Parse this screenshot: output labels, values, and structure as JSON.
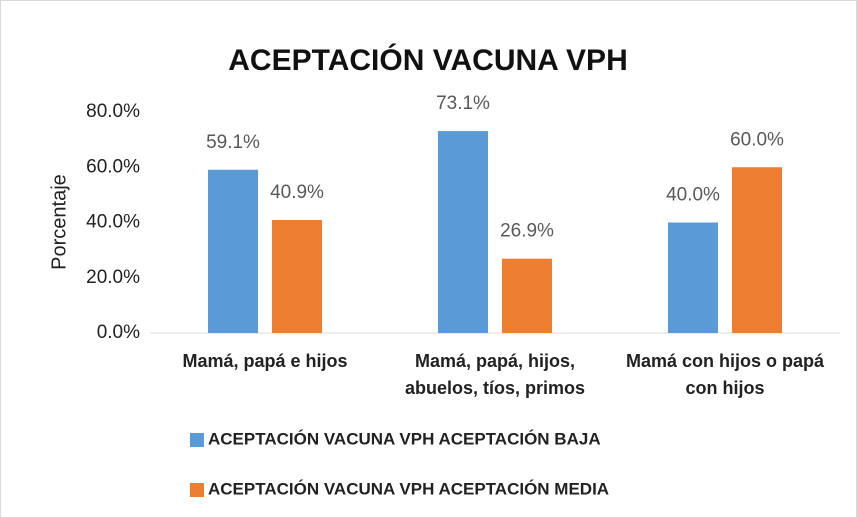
{
  "chart_data": {
    "type": "bar",
    "title": "ACEPTACIÓN VACUNA VPH",
    "y_label": "Porcentaje",
    "categories": [
      "Mamá, papá e hijos",
      "Mamá, papá, hijos, abuelos, tíos, primos",
      "Mamá con hijos o papá con hijos"
    ],
    "series": [
      {
        "name": "ACEPTACIÓN VACUNA VPH ACEPTACIÓN BAJA",
        "color": "#5b9bd5",
        "values": [
          59.1,
          73.1,
          40.0
        ],
        "value_labels": [
          "59.1%",
          "73.1%",
          "40.0%"
        ]
      },
      {
        "name": "ACEPTACIÓN VACUNA VPH ACEPTACIÓN MEDIA",
        "color": "#ed7d31",
        "values": [
          40.9,
          26.9,
          60.0
        ],
        "value_labels": [
          "40.9%",
          "26.9%",
          "60.0%"
        ]
      }
    ],
    "ylim": [
      0,
      80
    ],
    "yticks": [
      {
        "value": 0,
        "label": "0.0%"
      },
      {
        "value": 20,
        "label": "20.0%"
      },
      {
        "value": 40,
        "label": "40.0%"
      },
      {
        "value": 60,
        "label": "60.0%"
      },
      {
        "value": 80,
        "label": "80.0%"
      }
    ],
    "grid": false,
    "legend": "bottom"
  }
}
